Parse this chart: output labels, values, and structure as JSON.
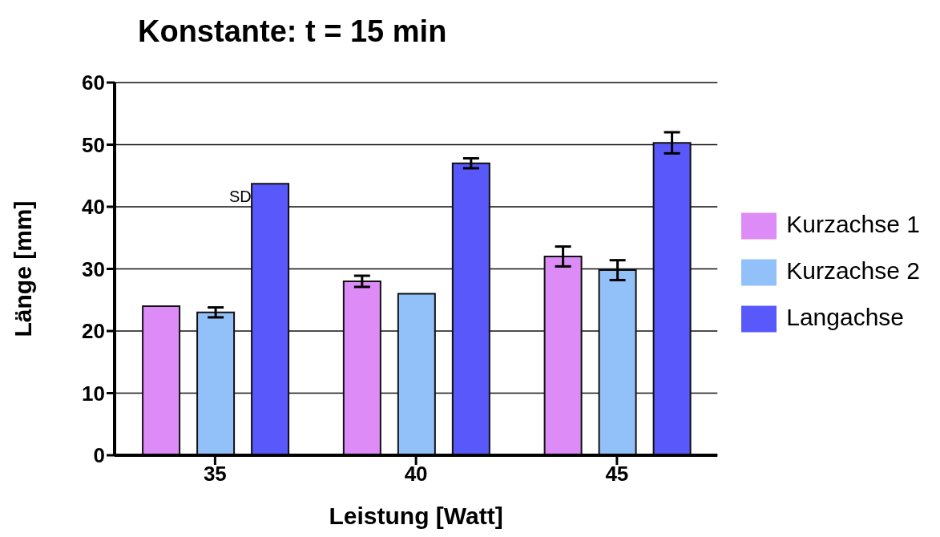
{
  "chart_data": {
    "type": "bar",
    "title": "Konstante: t = 15 min",
    "xlabel": "Leistung [Watt]",
    "ylabel": "Länge [mm]",
    "categories": [
      "35",
      "40",
      "45"
    ],
    "series": [
      {
        "name": "Kurzachse 1",
        "color": "#dd8bf7",
        "values": [
          24,
          28,
          32
        ],
        "errors": [
          null,
          0.9,
          1.6
        ]
      },
      {
        "name": "Kurzachse 2",
        "color": "#92c1f9",
        "values": [
          23,
          26,
          29.8
        ],
        "errors": [
          0.8,
          null,
          1.6
        ]
      },
      {
        "name": "Langachse",
        "color": "#5858fb",
        "values": [
          43.7,
          47,
          50.3
        ],
        "errors": [
          null,
          0.8,
          1.7
        ]
      }
    ],
    "ylim": [
      0,
      60
    ],
    "yticks": [
      0,
      10,
      20,
      30,
      40,
      50,
      60
    ],
    "grid": "y",
    "legend": "right",
    "annotations": [
      "SD"
    ]
  }
}
